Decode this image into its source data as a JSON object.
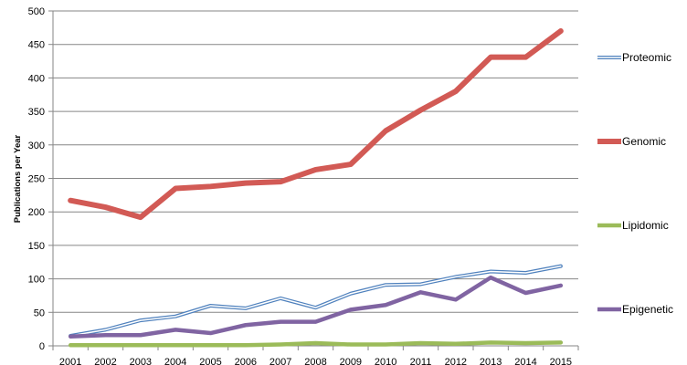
{
  "chart_data": {
    "type": "line",
    "title": "",
    "xlabel": "",
    "ylabel": "Publications per Year",
    "ylim": [
      0,
      500
    ],
    "yticks": [
      "0",
      "50",
      "100",
      "150",
      "200",
      "250",
      "300",
      "350",
      "400",
      "450",
      "500"
    ],
    "grid": true,
    "legend_position": "right",
    "categories": [
      "2001",
      "2002",
      "2003",
      "2004",
      "2005",
      "2006",
      "2007",
      "2008",
      "2009",
      "2010",
      "2011",
      "2012",
      "2013",
      "2014",
      "2015"
    ],
    "series": [
      {
        "name": "Proteomic",
        "color": "#4f81bd",
        "style": "double-line",
        "values": [
          15,
          24,
          38,
          44,
          60,
          56,
          71,
          57,
          78,
          91,
          92,
          103,
          111,
          109,
          119
        ]
      },
      {
        "name": "Genomic",
        "color": "#d25a55",
        "style": "thick",
        "values": [
          217,
          207,
          192,
          235,
          238,
          243,
          245,
          263,
          271,
          321,
          352,
          380,
          431,
          431,
          470
        ]
      },
      {
        "name": "Lipidomic",
        "color": "#9bbb59",
        "style": "medium",
        "values": [
          1,
          1,
          1,
          1,
          1,
          1,
          2,
          4,
          2,
          2,
          4,
          3,
          5,
          4,
          5
        ]
      },
      {
        "name": "Epigenetic",
        "color": "#8064a2",
        "style": "medium",
        "values": [
          14,
          16,
          16,
          24,
          19,
          31,
          36,
          36,
          54,
          61,
          80,
          69,
          102,
          79,
          90
        ]
      }
    ]
  }
}
